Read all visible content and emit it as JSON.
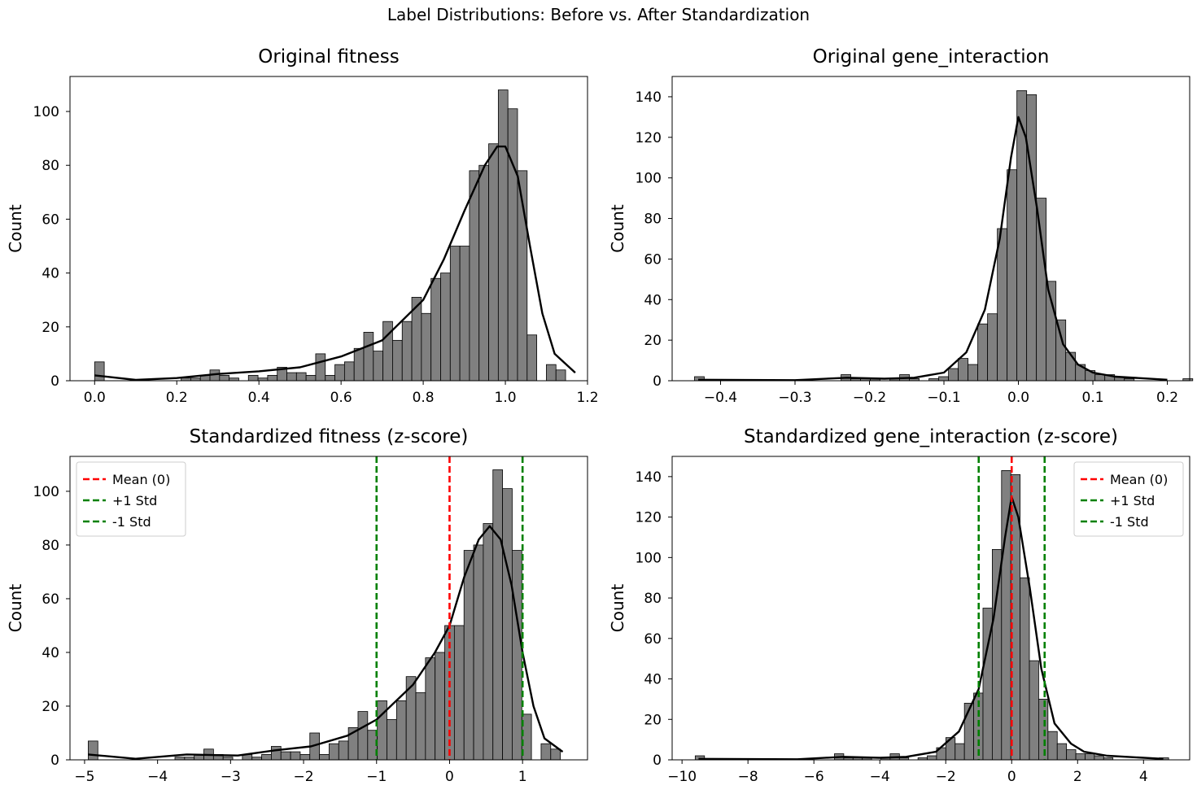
{
  "figure": {
    "suptitle": "Label Distributions: Before vs. After Standardization"
  },
  "chart_data": [
    {
      "id": "orig_fitness",
      "type": "bar",
      "title": "Original fitness",
      "xlabel": "",
      "ylabel": "Count",
      "xlim": [
        -0.06,
        1.2
      ],
      "ylim": [
        0,
        113
      ],
      "xticks": [
        0.0,
        0.2,
        0.4,
        0.6,
        0.8,
        1.0,
        1.2
      ],
      "xtick_labels": [
        "0.0",
        "0.2",
        "0.4",
        "0.6",
        "0.8",
        "1.0",
        "1.2"
      ],
      "yticks": [
        0,
        20,
        40,
        60,
        80,
        100
      ],
      "ytick_labels": [
        "0",
        "20",
        "40",
        "60",
        "80",
        "100"
      ],
      "bin_start": 0.0,
      "bin_width": 0.0234,
      "values": [
        7,
        0,
        0,
        0,
        0,
        0,
        0,
        0,
        0,
        1,
        1,
        2,
        4,
        2,
        1,
        0,
        2,
        1,
        2,
        5,
        3,
        3,
        2,
        10,
        2,
        6,
        7,
        12,
        18,
        11,
        22,
        15,
        22,
        31,
        25,
        38,
        40,
        50,
        50,
        78,
        80,
        88,
        108,
        101,
        78,
        17,
        0,
        6,
        4
      ],
      "kde_color": "#000000",
      "bar_color": "#808080",
      "kde": [
        [
          0.0,
          2
        ],
        [
          0.1,
          0.3
        ],
        [
          0.2,
          1
        ],
        [
          0.3,
          2.5
        ],
        [
          0.4,
          3.5
        ],
        [
          0.5,
          5
        ],
        [
          0.6,
          9
        ],
        [
          0.7,
          15
        ],
        [
          0.8,
          30
        ],
        [
          0.85,
          45
        ],
        [
          0.9,
          63
        ],
        [
          0.95,
          80
        ],
        [
          0.98,
          87
        ],
        [
          1.0,
          87
        ],
        [
          1.03,
          76
        ],
        [
          1.06,
          50
        ],
        [
          1.09,
          25
        ],
        [
          1.12,
          10
        ],
        [
          1.17,
          3
        ]
      ],
      "vlines": [],
      "legend": null
    },
    {
      "id": "orig_gi",
      "type": "bar",
      "title": "Original gene_interaction",
      "xlabel": "",
      "ylabel": "Count",
      "xlim": [
        -0.465,
        0.23
      ],
      "ylim": [
        0,
        150
      ],
      "xticks": [
        -0.4,
        -0.3,
        -0.2,
        -0.1,
        0.0,
        0.1,
        0.2
      ],
      "xtick_labels": [
        "−0.4",
        "−0.3",
        "−0.2",
        "−0.1",
        "0.0",
        "0.1",
        "0.2"
      ],
      "yticks": [
        0,
        20,
        40,
        60,
        80,
        100,
        120,
        140
      ],
      "ytick_labels": [
        "0",
        "20",
        "40",
        "60",
        "80",
        "100",
        "120",
        "140"
      ],
      "bin_start": -0.435,
      "bin_width": 0.01312,
      "values": [
        2,
        0,
        0,
        0,
        0,
        0,
        0,
        0,
        0,
        0,
        0,
        0,
        0,
        0,
        0,
        3,
        1,
        1,
        1,
        0,
        1,
        3,
        1,
        0,
        1,
        2,
        6,
        11,
        8,
        28,
        33,
        75,
        104,
        143,
        141,
        90,
        49,
        30,
        14,
        8,
        5,
        3,
        3,
        2,
        1,
        0,
        0,
        0,
        0,
        0,
        1
      ],
      "kde_color": "#000000",
      "bar_color": "#808080",
      "kde": [
        [
          -0.43,
          0.5
        ],
        [
          -0.3,
          0.3
        ],
        [
          -0.23,
          1.5
        ],
        [
          -0.18,
          1
        ],
        [
          -0.14,
          1.5
        ],
        [
          -0.1,
          4
        ],
        [
          -0.07,
          14
        ],
        [
          -0.045,
          35
        ],
        [
          -0.025,
          70
        ],
        [
          -0.01,
          110
        ],
        [
          0.0,
          130
        ],
        [
          0.01,
          120
        ],
        [
          0.025,
          85
        ],
        [
          0.04,
          45
        ],
        [
          0.06,
          18
        ],
        [
          0.08,
          8
        ],
        [
          0.1,
          4
        ],
        [
          0.13,
          2
        ],
        [
          0.2,
          0.5
        ]
      ],
      "vlines": [],
      "legend": null
    },
    {
      "id": "std_fitness",
      "type": "bar",
      "title": "Standardized fitness (z-score)",
      "xlabel": "",
      "ylabel": "Count",
      "xlim": [
        -5.2,
        1.89
      ],
      "ylim": [
        0,
        113
      ],
      "xticks": [
        -5,
        -4,
        -3,
        -2,
        -1,
        0,
        1
      ],
      "xtick_labels": [
        "−5",
        "−4",
        "−3",
        "−2",
        "−1",
        "0",
        "1"
      ],
      "yticks": [
        0,
        20,
        40,
        60,
        80,
        100
      ],
      "ytick_labels": [
        "0",
        "20",
        "40",
        "60",
        "80",
        "100"
      ],
      "bin_start": -4.95,
      "bin_width": 0.132,
      "values": [
        7,
        0,
        0,
        0,
        0,
        0,
        0,
        0,
        0,
        1,
        1,
        2,
        4,
        2,
        1,
        0,
        2,
        1,
        2,
        5,
        3,
        3,
        2,
        10,
        2,
        6,
        7,
        12,
        18,
        11,
        22,
        15,
        22,
        31,
        25,
        38,
        40,
        50,
        50,
        78,
        80,
        88,
        108,
        101,
        78,
        17,
        0,
        6,
        4
      ],
      "kde_color": "#000000",
      "bar_color": "#808080",
      "kde": [
        [
          -4.95,
          2
        ],
        [
          -4.3,
          0.4
        ],
        [
          -3.6,
          2
        ],
        [
          -2.9,
          1.6
        ],
        [
          -2.4,
          3.5
        ],
        [
          -1.9,
          5
        ],
        [
          -1.4,
          9
        ],
        [
          -1.0,
          15
        ],
        [
          -0.5,
          28
        ],
        [
          -0.2,
          40
        ],
        [
          0.0,
          50
        ],
        [
          0.2,
          68
        ],
        [
          0.4,
          82
        ],
        [
          0.55,
          87
        ],
        [
          0.7,
          82
        ],
        [
          0.85,
          65
        ],
        [
          1.0,
          40
        ],
        [
          1.15,
          20
        ],
        [
          1.3,
          8
        ],
        [
          1.55,
          3
        ]
      ],
      "vlines": [
        {
          "x": 0,
          "color": "#ff0000",
          "label": "Mean (0)"
        },
        {
          "x": 1,
          "color": "#008000",
          "label": "+1 Std"
        },
        {
          "x": -1,
          "color": "#008000",
          "label": "-1 Std"
        }
      ],
      "legend": {
        "loc": "upper left",
        "entries": [
          "Mean (0)",
          "+1 Std",
          "-1 Std"
        ]
      }
    },
    {
      "id": "std_gi",
      "type": "bar",
      "title": "Standardized gene_interaction (z-score)",
      "xlabel": "",
      "ylabel": "Count",
      "xlim": [
        -10.3,
        5.4
      ],
      "ylim": [
        0,
        150
      ],
      "xticks": [
        -10,
        -8,
        -6,
        -4,
        -2,
        0,
        2,
        4
      ],
      "xtick_labels": [
        "−10",
        "−8",
        "−6",
        "−4",
        "−2",
        "0",
        "2",
        "4"
      ],
      "yticks": [
        0,
        20,
        40,
        60,
        80,
        100,
        120,
        140
      ],
      "ytick_labels": [
        "0",
        "20",
        "40",
        "60",
        "80",
        "100",
        "120",
        "140"
      ],
      "bin_start": -9.6,
      "bin_width": 0.2816,
      "values": [
        2,
        0,
        0,
        0,
        0,
        0,
        0,
        0,
        0,
        0,
        0,
        0,
        0,
        0,
        0,
        3,
        1,
        1,
        1,
        0,
        1,
        3,
        1,
        0,
        1,
        2,
        6,
        11,
        8,
        28,
        33,
        75,
        104,
        143,
        141,
        90,
        49,
        30,
        14,
        8,
        5,
        3,
        3,
        2,
        1,
        0,
        0,
        0,
        0,
        0,
        1
      ],
      "kde_color": "#000000",
      "bar_color": "#808080",
      "kde": [
        [
          -9.5,
          0.5
        ],
        [
          -6.5,
          0.3
        ],
        [
          -5.1,
          1.5
        ],
        [
          -4.0,
          1
        ],
        [
          -3.2,
          1.5
        ],
        [
          -2.3,
          4
        ],
        [
          -1.6,
          14
        ],
        [
          -1.0,
          35
        ],
        [
          -0.55,
          70
        ],
        [
          -0.2,
          110
        ],
        [
          0.0,
          130
        ],
        [
          0.2,
          120
        ],
        [
          0.55,
          85
        ],
        [
          0.9,
          45
        ],
        [
          1.3,
          18
        ],
        [
          1.8,
          8
        ],
        [
          2.2,
          4
        ],
        [
          2.9,
          2
        ],
        [
          4.6,
          0.5
        ]
      ],
      "vlines": [
        {
          "x": 0,
          "color": "#ff0000",
          "label": "Mean (0)"
        },
        {
          "x": 1,
          "color": "#008000",
          "label": "+1 Std"
        },
        {
          "x": -1,
          "color": "#008000",
          "label": "-1 Std"
        }
      ],
      "legend": {
        "loc": "upper right",
        "entries": [
          "Mean (0)",
          "+1 Std",
          "-1 Std"
        ]
      }
    }
  ]
}
